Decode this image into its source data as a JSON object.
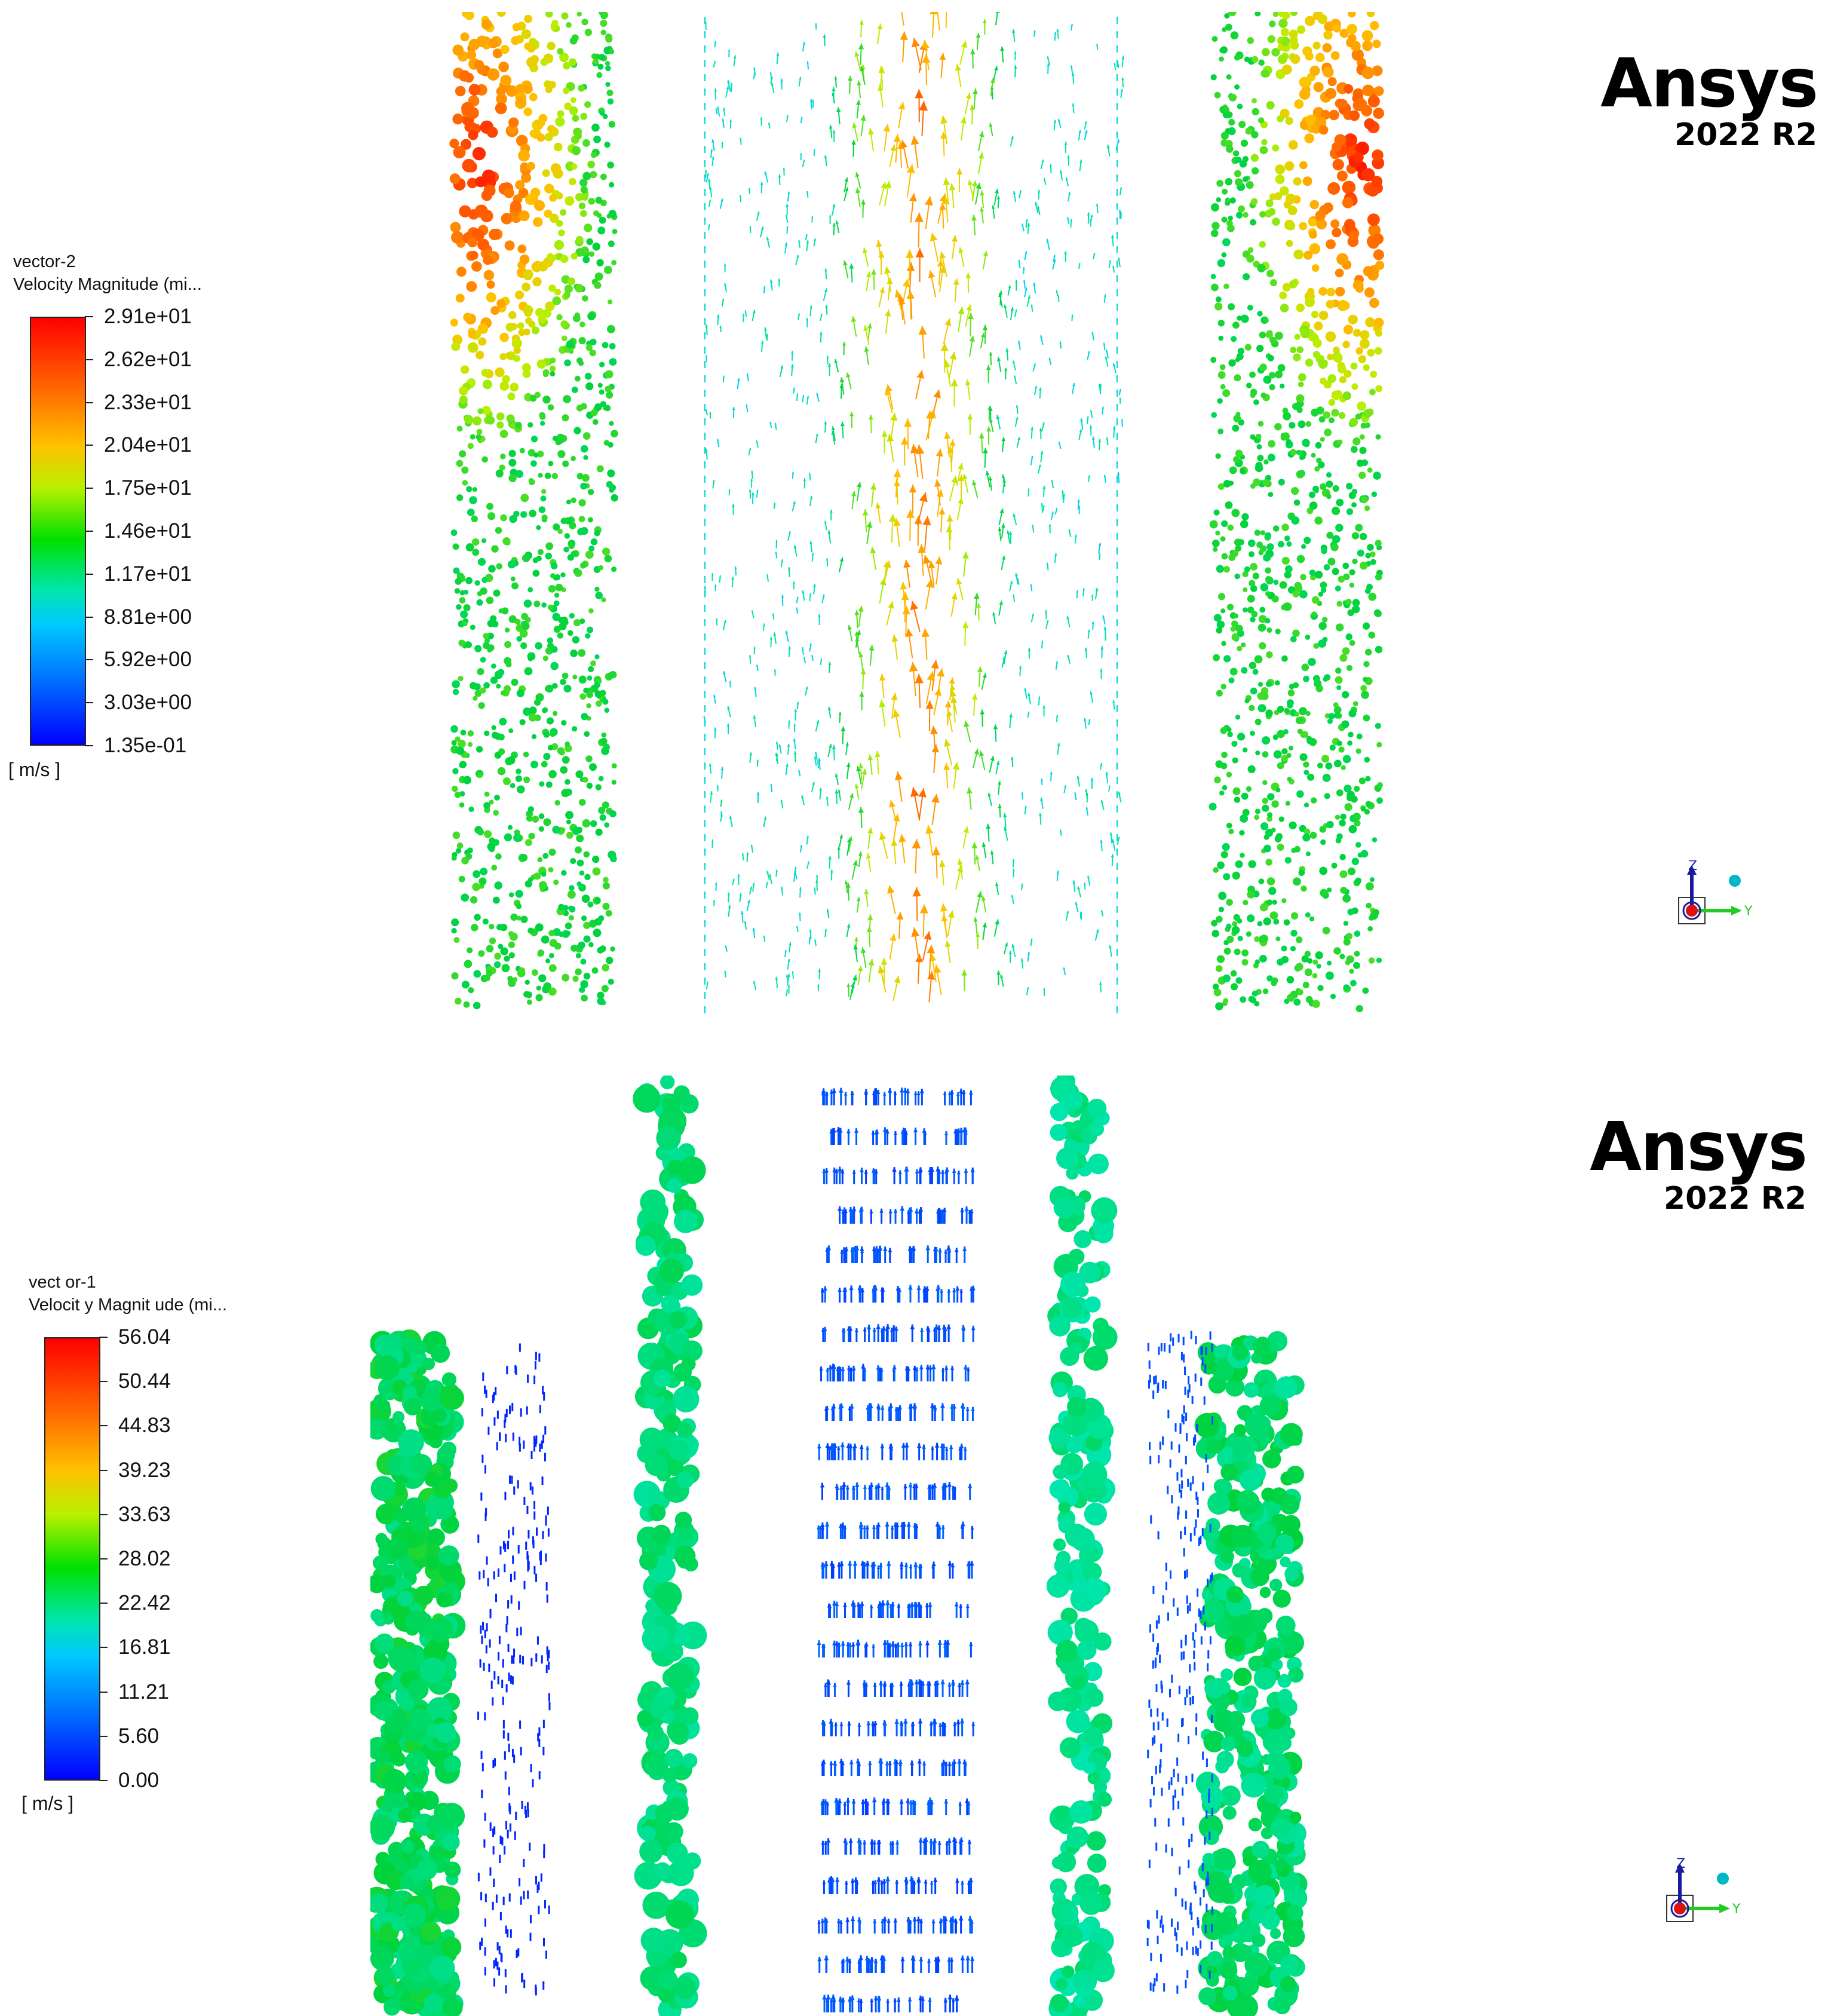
{
  "top": {
    "legend": {
      "name": "vector-2",
      "variable": "Velocity Magnitude (mi...",
      "unit": "[ m/s ]",
      "ticks": [
        "2.91e+01",
        "2.62e+01",
        "2.33e+01",
        "2.04e+01",
        "1.75e+01",
        "1.46e+01",
        "1.17e+01",
        "8.81e+00",
        "5.92e+00",
        "3.03e+00",
        "1.35e-01"
      ]
    },
    "logo": {
      "brand": "Ansys",
      "version": "2022 R2"
    },
    "axes": {
      "up": "Z",
      "right": "Y"
    }
  },
  "bottom": {
    "legend": {
      "name": "vect or-1",
      "variable": "Velocit y Magnit ude (mi...",
      "unit": "[ m/s ]",
      "ticks": [
        "56.04",
        "50.44",
        "44.83",
        "39.23",
        "33.63",
        "28.02",
        "22.42",
        "16.81",
        "11.21",
        "5.60",
        "0.00"
      ]
    },
    "logo": {
      "brand": "Ansys",
      "version": "2022 R2"
    },
    "axes": {
      "up": "Z",
      "right": "Y"
    }
  },
  "colors": {
    "background": "#ffffff",
    "axis_z": "#1a1aa0",
    "axis_y": "#22cc22",
    "axis_x": "#dd1111",
    "triad_dot": "#00b7c7"
  }
}
